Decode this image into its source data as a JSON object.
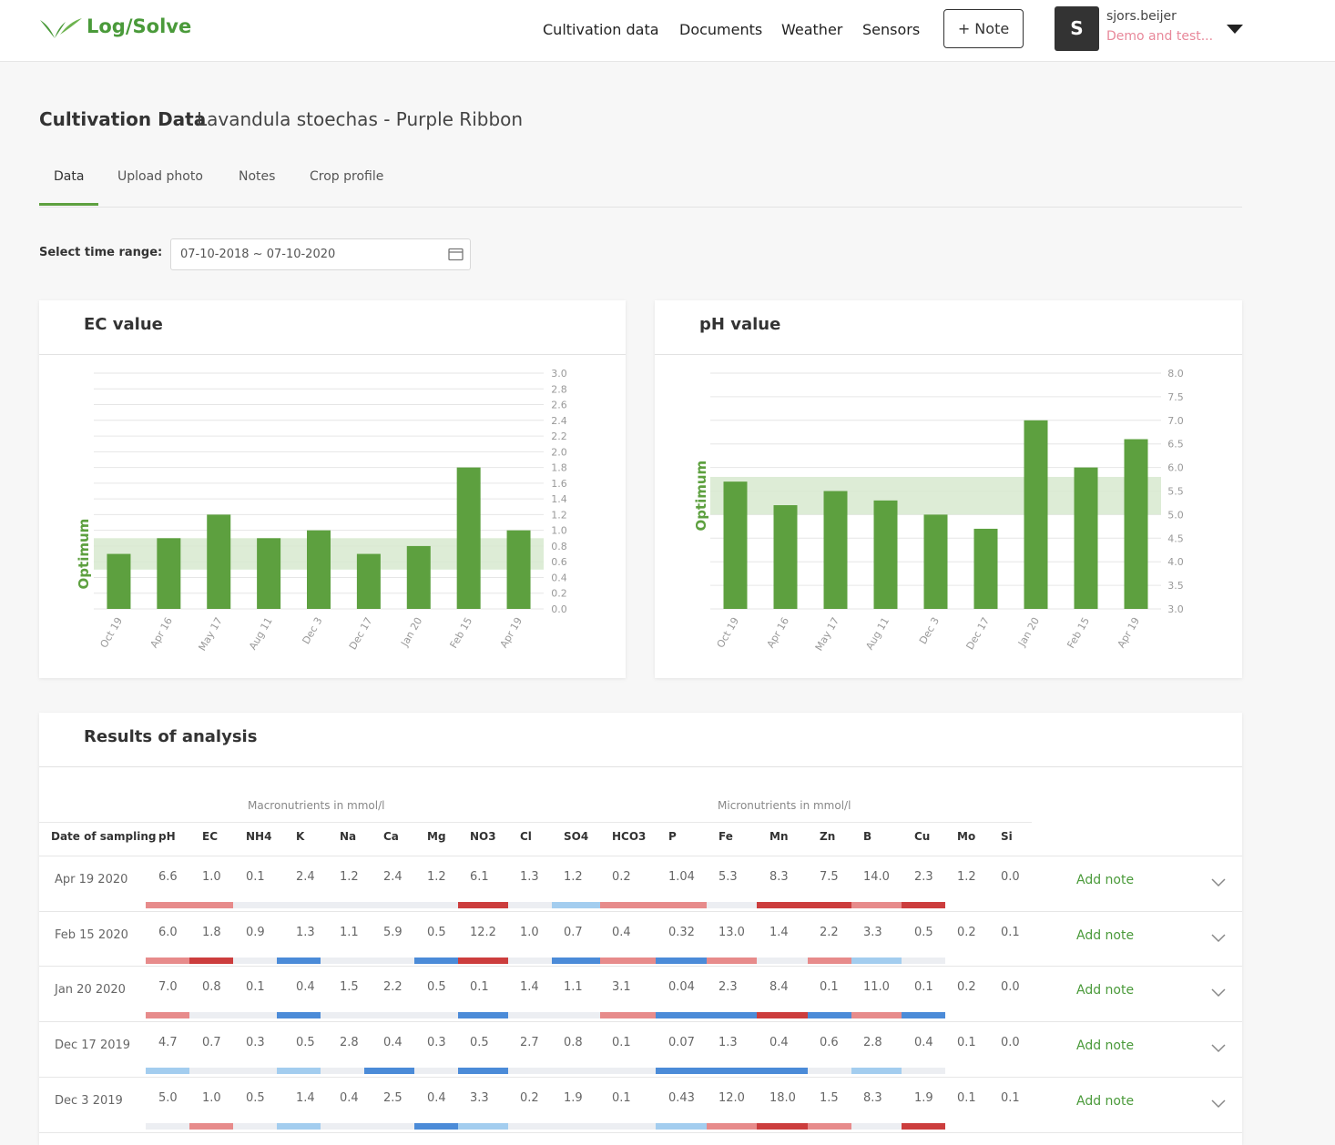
{
  "header": {
    "logo": "Log/Solve",
    "nav": [
      "Cultivation data",
      "Documents",
      "Weather",
      "Sensors"
    ],
    "note_button": "+ Note",
    "avatar": "S",
    "user_name": "sjors.beijer",
    "user_org": "Demo and test..."
  },
  "page": {
    "title": "Cultivation Data",
    "subtitle": "Lavandula stoechas - Purple Ribbon",
    "tabs": [
      "Data",
      "Upload photo",
      "Notes",
      "Crop profile"
    ],
    "active_tab": 0,
    "range_label": "Select time range:",
    "range_value": "07-10-2018 ~ 07-10-2020"
  },
  "chart_data": [
    {
      "type": "bar",
      "title": "EC value",
      "categories": [
        "Oct 19",
        "Apr 16",
        "May 17",
        "Aug 11",
        "Dec 3",
        "Dec 17",
        "Jan 20",
        "Feb 15",
        "Apr 19"
      ],
      "values": [
        0.7,
        0.9,
        1.2,
        0.9,
        1.0,
        0.7,
        0.8,
        1.8,
        1.0
      ],
      "color": "#5da03f",
      "ylim": [
        0,
        3
      ],
      "yticks": [
        {
          "value": 0,
          "label": "0.0"
        },
        0.2,
        0.4,
        0.6,
        0.8,
        {
          "value": 1,
          "label": "1.0"
        },
        1.2,
        1.4,
        1.6,
        1.8,
        {
          "value": 2,
          "label": "2.0"
        },
        2.2,
        2.4,
        2.6,
        2.8,
        {
          "value": 3,
          "label": "3.0"
        }
      ],
      "grid": true,
      "optimum": {
        "label": "Optimum",
        "range": [
          0.5,
          0.9
        ],
        "color": "#d7e9cf"
      }
    },
    {
      "type": "bar",
      "title": "pH value",
      "categories": [
        "Oct 19",
        "Apr 16",
        "May 17",
        "Aug 11",
        "Dec 3",
        "Dec 17",
        "Jan 20",
        "Feb 15",
        "Apr 19"
      ],
      "values": [
        5.7,
        5.2,
        5.5,
        5.3,
        5.0,
        4.7,
        7.0,
        6.0,
        6.6
      ],
      "color": "#5da03f",
      "ylim": [
        3,
        8
      ],
      "yticks": [
        {
          "value": 3,
          "label": "3.0"
        },
        3.5,
        {
          "value": 4,
          "label": "4.0"
        },
        4.5,
        {
          "value": 5,
          "label": "5.0"
        },
        5.5,
        {
          "value": 6,
          "label": "6.0"
        },
        6.5,
        {
          "value": 7,
          "label": "7.0"
        },
        7.5,
        {
          "value": 8,
          "label": "8.0"
        }
      ],
      "grid": true,
      "optimum": {
        "label": "Optimum",
        "range": [
          5.0,
          5.8
        ],
        "color": "#d7e9cf"
      }
    }
  ],
  "table": {
    "title": "Results of analysis",
    "groups": [
      "Macronutrients in mmol/l",
      "Micronutrients in mmol/l"
    ],
    "columns": [
      "Date of sampling",
      "pH",
      "EC",
      "NH4",
      "K",
      "Na",
      "Ca",
      "Mg",
      "NO3",
      "Cl",
      "SO4",
      "HCO3",
      "P",
      "Fe",
      "Mn",
      "Zn",
      "B",
      "Cu",
      "Mo",
      "Si"
    ],
    "status_colors": {
      "ok": "#eceef2",
      "high": "#e78b8b",
      "very-high": "#cc3d3d",
      "low": "#a3cdef",
      "very-low": "#4b8bd8"
    },
    "rows": [
      {
        "date": "Apr 19 2020",
        "values": [
          "6.6",
          "1.0",
          "0.1",
          "2.4",
          "1.2",
          "2.4",
          "1.2",
          "6.1",
          "1.3",
          "1.2",
          "0.2",
          "1.04",
          "5.3",
          "8.3",
          "7.5",
          "14.0",
          "2.3",
          "1.2",
          "0.0"
        ],
        "status": [
          "high",
          "high",
          "ok",
          "ok",
          "ok",
          "ok",
          "ok",
          "very-high",
          "ok",
          "low",
          "high",
          "high",
          "ok",
          "very-high",
          "very-high",
          "high",
          "very-high"
        ],
        "action": "Add note"
      },
      {
        "date": "Feb 15 2020",
        "values": [
          "6.0",
          "1.8",
          "0.9",
          "1.3",
          "1.1",
          "5.9",
          "0.5",
          "12.2",
          "1.0",
          "0.7",
          "0.4",
          "0.32",
          "13.0",
          "1.4",
          "2.2",
          "3.3",
          "0.5",
          "0.2",
          "0.1"
        ],
        "status": [
          "high",
          "very-high",
          "ok",
          "very-low",
          "ok",
          "ok",
          "very-low",
          "very-high",
          "ok",
          "very-low",
          "high",
          "very-low",
          "high",
          "ok",
          "high",
          "low",
          "ok"
        ],
        "action": "Add note"
      },
      {
        "date": "Jan 20 2020",
        "values": [
          "7.0",
          "0.8",
          "0.1",
          "0.4",
          "1.5",
          "2.2",
          "0.5",
          "0.1",
          "1.4",
          "1.1",
          "3.1",
          "0.04",
          "2.3",
          "8.4",
          "0.1",
          "11.0",
          "0.1",
          "0.2",
          "0.0"
        ],
        "status": [
          "high",
          "ok",
          "ok",
          "very-low",
          "ok",
          "ok",
          "ok",
          "very-low",
          "ok",
          "ok",
          "high",
          "very-low",
          "very-low",
          "very-high",
          "very-low",
          "high",
          "very-low"
        ],
        "action": "Add note"
      },
      {
        "date": "Dec 17 2019",
        "values": [
          "4.7",
          "0.7",
          "0.3",
          "0.5",
          "2.8",
          "0.4",
          "0.3",
          "0.5",
          "2.7",
          "0.8",
          "0.1",
          "0.07",
          "1.3",
          "0.4",
          "0.6",
          "2.8",
          "0.4",
          "0.1",
          "0.0"
        ],
        "status": [
          "low",
          "ok",
          "ok",
          "low",
          "ok",
          "very-low",
          "ok",
          "very-low",
          "ok",
          "ok",
          "ok",
          "very-low",
          "very-low",
          "very-low",
          "ok",
          "low",
          "ok"
        ],
        "action": "Add note"
      },
      {
        "date": "Dec 3 2019",
        "values": [
          "5.0",
          "1.0",
          "0.5",
          "1.4",
          "0.4",
          "2.5",
          "0.4",
          "3.3",
          "0.2",
          "1.9",
          "0.1",
          "0.43",
          "12.0",
          "18.0",
          "1.5",
          "8.3",
          "1.9",
          "0.1",
          "0.1"
        ],
        "status": [
          "ok",
          "high",
          "ok",
          "low",
          "ok",
          "ok",
          "very-low",
          "low",
          "ok",
          "ok",
          "ok",
          "low",
          "high",
          "very-high",
          "high",
          "ok",
          "very-high"
        ],
        "action": "Add note"
      }
    ]
  }
}
